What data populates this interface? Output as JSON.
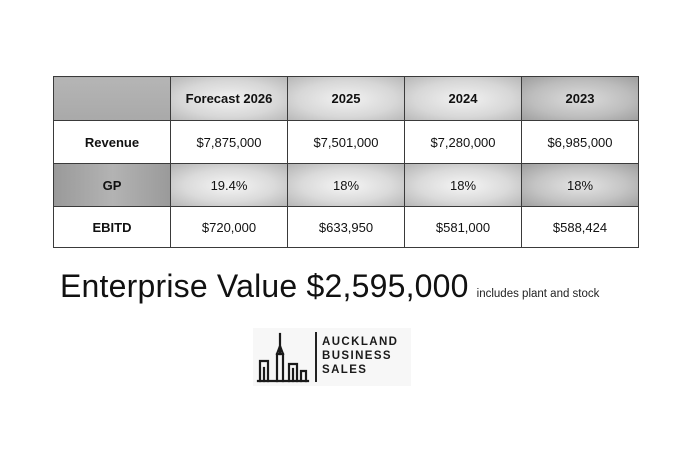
{
  "table": {
    "headers": [
      "",
      "Forecast 2026",
      "2025",
      "2024",
      "2023"
    ],
    "rows": [
      {
        "label": "Revenue",
        "values": [
          "$7,875,000",
          "$7,501,000",
          "$7,280,000",
          "$6,985,000"
        ]
      },
      {
        "label": "GP",
        "values": [
          "19.4%",
          "18%",
          "18%",
          "18%"
        ]
      },
      {
        "label": "EBITD",
        "values": [
          "$720,000",
          "$633,950",
          "$581,000",
          "$588,424"
        ]
      }
    ]
  },
  "enterprise_value": {
    "text": "Enterprise Value $2,595,000",
    "note": "includes plant and stock"
  },
  "logo": {
    "line1": "AUCKLAND",
    "line2": "BUSINESS",
    "line3": "SALES",
    "icon": "city-skyline-icon"
  }
}
